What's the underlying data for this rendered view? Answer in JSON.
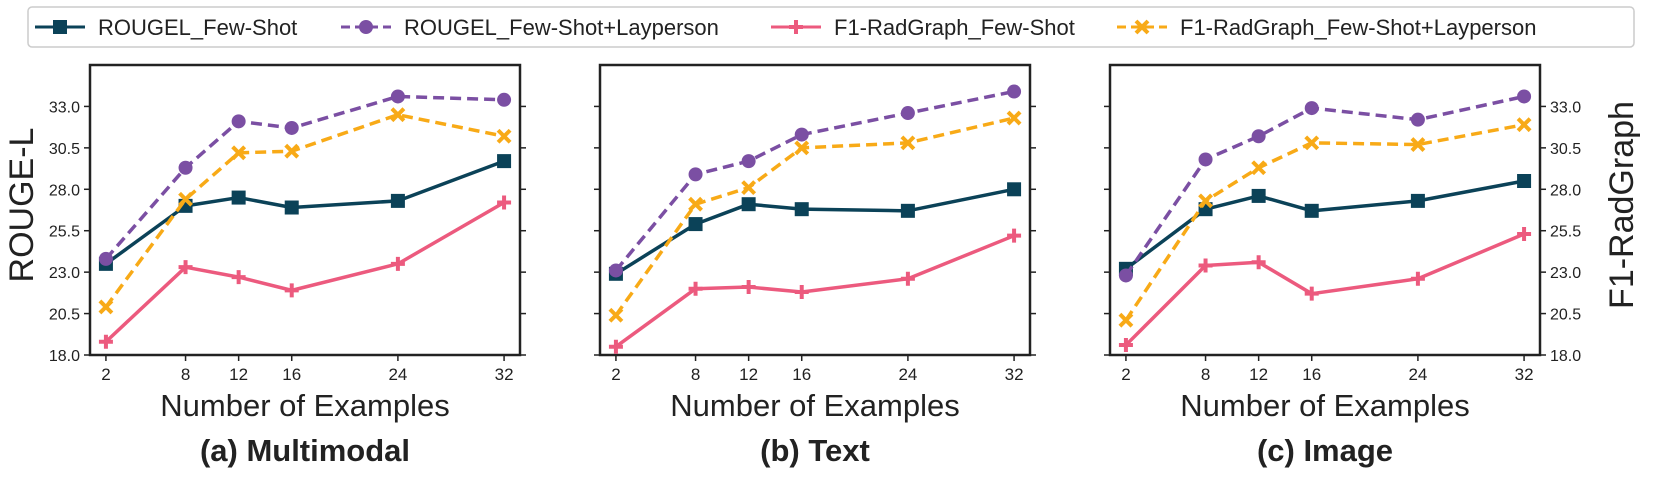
{
  "legend": {
    "items": [
      {
        "label": "ROUGEL_Few-Shot",
        "color": "#0b4258",
        "marker": "square",
        "dash": "solid"
      },
      {
        "label": "ROUGEL_Few-Shot+Layperson",
        "color": "#7b4fa3",
        "marker": "circle",
        "dash": "dashed"
      },
      {
        "label": "F1-RadGraph_Few-Shot",
        "color": "#ec5a7e",
        "marker": "plus",
        "dash": "solid"
      },
      {
        "label": "F1-RadGraph_Few-Shot+Layperson",
        "color": "#f8aa17",
        "marker": "x",
        "dash": "dashed"
      }
    ]
  },
  "axes": {
    "left_label": "ROUGE-L",
    "right_label": "F1-RadGraph"
  },
  "chart_data": [
    {
      "type": "line",
      "subtitle": "(a) Multimodal",
      "xlabel": "Number of Examples",
      "x": [
        2,
        8,
        12,
        16,
        24,
        32
      ],
      "ylim": [
        18.0,
        35.5
      ],
      "yticks": [
        "18.0",
        "20.5",
        "23.0",
        "25.5",
        "28.0",
        "30.5",
        "33.0"
      ],
      "series": [
        {
          "name": "ROUGEL_Few-Shot",
          "values": [
            23.5,
            27.0,
            27.5,
            26.9,
            27.3,
            29.7
          ]
        },
        {
          "name": "ROUGEL_Few-Shot+Layperson",
          "values": [
            23.8,
            29.3,
            32.1,
            31.7,
            33.6,
            33.4
          ]
        },
        {
          "name": "F1-RadGraph_Few-Shot",
          "values": [
            18.8,
            23.3,
            22.7,
            21.9,
            23.5,
            27.2
          ]
        },
        {
          "name": "F1-RadGraph_Few-Shot+Layperson",
          "values": [
            20.9,
            27.4,
            30.2,
            30.3,
            32.5,
            31.2
          ]
        }
      ]
    },
    {
      "type": "line",
      "subtitle": "(b) Text",
      "xlabel": "Number of Examples",
      "x": [
        2,
        8,
        12,
        16,
        24,
        32
      ],
      "ylim": [
        18.0,
        35.5
      ],
      "yticks": [
        "18.0",
        "20.5",
        "23.0",
        "25.5",
        "28.0",
        "30.5",
        "33.0"
      ],
      "series": [
        {
          "name": "ROUGEL_Few-Shot",
          "values": [
            22.9,
            25.9,
            27.1,
            26.8,
            26.7,
            28.0
          ]
        },
        {
          "name": "ROUGEL_Few-Shot+Layperson",
          "values": [
            23.1,
            28.9,
            29.7,
            31.3,
            32.6,
            33.9
          ]
        },
        {
          "name": "F1-RadGraph_Few-Shot",
          "values": [
            18.5,
            22.0,
            22.1,
            21.8,
            22.6,
            25.2
          ]
        },
        {
          "name": "F1-RadGraph_Few-Shot+Layperson",
          "values": [
            20.4,
            27.1,
            28.1,
            30.5,
            30.8,
            32.3
          ]
        }
      ]
    },
    {
      "type": "line",
      "subtitle": "(c) Image",
      "xlabel": "Number of Examples",
      "x": [
        2,
        8,
        12,
        16,
        24,
        32
      ],
      "ylim": [
        18.0,
        35.5
      ],
      "yticks": [
        "18.0",
        "20.5",
        "23.0",
        "25.5",
        "28.0",
        "30.5",
        "33.0"
      ],
      "series": [
        {
          "name": "ROUGEL_Few-Shot",
          "values": [
            23.2,
            26.8,
            27.6,
            26.7,
            27.3,
            28.5
          ]
        },
        {
          "name": "ROUGEL_Few-Shot+Layperson",
          "values": [
            22.8,
            29.8,
            31.2,
            32.9,
            32.2,
            33.6
          ]
        },
        {
          "name": "F1-RadGraph_Few-Shot",
          "values": [
            18.6,
            23.4,
            23.6,
            21.7,
            22.6,
            25.3
          ]
        },
        {
          "name": "F1-RadGraph_Few-Shot+Layperson",
          "values": [
            20.1,
            27.3,
            29.3,
            30.8,
            30.7,
            31.9
          ]
        }
      ]
    }
  ]
}
